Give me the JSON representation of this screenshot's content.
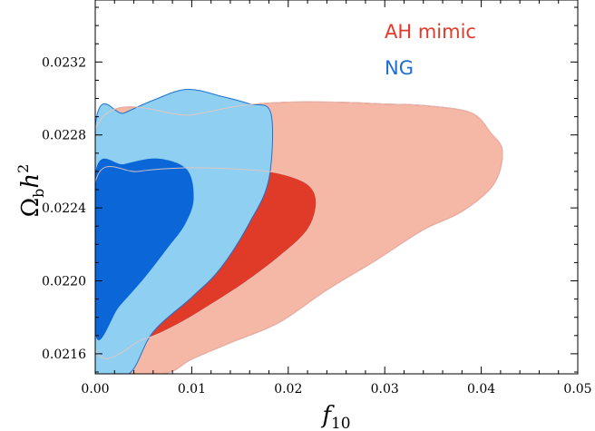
{
  "chart_data": {
    "type": "contour",
    "xlabel": "f",
    "xlabel_sub": "10",
    "ylabel": "Ω",
    "ylabel_sub": "b",
    "ylabel_tail": "h",
    "ylabel_sup": "2",
    "xlim": [
      0.0,
      0.05
    ],
    "ylim": [
      0.02149,
      0.02354
    ],
    "xticks": [
      0.0,
      0.01,
      0.02,
      0.03,
      0.04,
      0.05
    ],
    "xtick_labels": [
      "0.00",
      "0.01",
      "0.02",
      "0.03",
      "0.04",
      "0.05"
    ],
    "yticks": [
      0.0216,
      0.022,
      0.0224,
      0.0228,
      0.0232
    ],
    "ytick_labels": [
      "0.0216",
      "0.0220",
      "0.0224",
      "0.0228",
      "0.0232"
    ],
    "legend_position": "top-right",
    "series": [
      {
        "name": "AH mimic",
        "legend_color": "#e03a28",
        "outer_fill": "#f5b8a6",
        "inner_fill": "#e03a28",
        "edge": "#d63a2a",
        "contour_95": [
          [
            0.0,
            0.02283
          ],
          [
            0.01,
            0.02291
          ],
          [
            0.015,
            0.02296
          ],
          [
            0.02,
            0.02298
          ],
          [
            0.025,
            0.02298
          ],
          [
            0.03,
            0.02297
          ],
          [
            0.0345,
            0.02296
          ],
          [
            0.039,
            0.02292
          ],
          [
            0.041,
            0.02281
          ],
          [
            0.0422,
            0.02271
          ],
          [
            0.0413,
            0.02253
          ],
          [
            0.038,
            0.02238
          ],
          [
            0.034,
            0.02228
          ],
          [
            0.029,
            0.02211
          ],
          [
            0.024,
            0.02195
          ],
          [
            0.019,
            0.02177
          ],
          [
            0.014,
            0.02166
          ],
          [
            0.01,
            0.02157
          ],
          [
            0.007,
            0.02149
          ],
          [
            0.0,
            0.02149
          ]
        ],
        "contour_68": [
          [
            0.0,
            0.02254
          ],
          [
            0.0045,
            0.0226
          ],
          [
            0.01,
            0.02262
          ],
          [
            0.0155,
            0.02261
          ],
          [
            0.019,
            0.02259
          ],
          [
            0.022,
            0.02253
          ],
          [
            0.0229,
            0.02243
          ],
          [
            0.022,
            0.02228
          ],
          [
            0.019,
            0.02213
          ],
          [
            0.0155,
            0.02199
          ],
          [
            0.012,
            0.02187
          ],
          [
            0.0085,
            0.02176
          ],
          [
            0.005,
            0.02168
          ],
          [
            0.0,
            0.02163
          ]
        ]
      },
      {
        "name": "NG",
        "legend_color": "#1c6fd6",
        "outer_fill": "#8ecff2",
        "inner_fill": "#0b67d8",
        "edge": "#1e72d4",
        "contour_95": [
          [
            0.0,
            0.02285
          ],
          [
            0.003,
            0.02292
          ],
          [
            0.006,
            0.02299
          ],
          [
            0.0095,
            0.02305
          ],
          [
            0.0132,
            0.02301
          ],
          [
            0.016,
            0.02297
          ],
          [
            0.0182,
            0.02292
          ],
          [
            0.018,
            0.02256
          ],
          [
            0.016,
            0.02232
          ],
          [
            0.013,
            0.02207
          ],
          [
            0.01,
            0.02191
          ],
          [
            0.006,
            0.02172
          ],
          [
            0.0035,
            0.02149
          ],
          [
            0.0,
            0.02149
          ]
        ],
        "contour_68": [
          [
            0.0,
            0.02259
          ],
          [
            0.003,
            0.02264
          ],
          [
            0.0065,
            0.02267
          ],
          [
            0.0095,
            0.02261
          ],
          [
            0.0102,
            0.02245
          ],
          [
            0.0093,
            0.02231
          ],
          [
            0.0075,
            0.02218
          ],
          [
            0.005,
            0.02201
          ],
          [
            0.0025,
            0.02186
          ],
          [
            0.0,
            0.02171
          ]
        ]
      }
    ]
  }
}
